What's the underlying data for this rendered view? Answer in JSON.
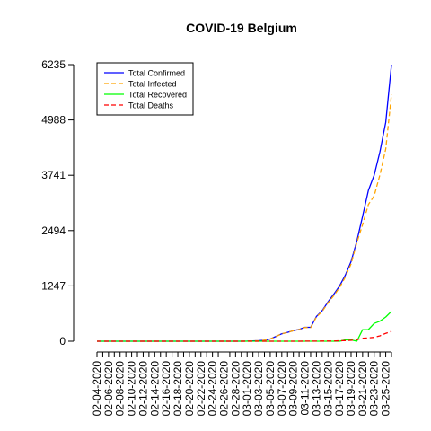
{
  "chart_data": {
    "type": "line",
    "title": "COVID-19 Belgium",
    "xlabel": "",
    "ylabel": "",
    "ylim": [
      0,
      6235
    ],
    "y_ticks": [
      0,
      1247,
      2494,
      3741,
      4988,
      6235
    ],
    "x_tick_labels": [
      "02-04-2020",
      "02-06-2020",
      "02-08-2020",
      "02-10-2020",
      "02-12-2020",
      "02-14-2020",
      "02-16-2020",
      "02-18-2020",
      "02-20-2020",
      "02-22-2020",
      "02-24-2020",
      "02-26-2020",
      "02-28-2020",
      "03-01-2020",
      "03-03-2020",
      "03-05-2020",
      "03-07-2020",
      "03-09-2020",
      "03-11-2020",
      "03-13-2020",
      "03-15-2020",
      "03-17-2020",
      "03-19-2020",
      "03-21-2020",
      "03-23-2020",
      "03-25-2020"
    ],
    "legend_position": "top-left",
    "grid": false,
    "x": [
      "02-04-2020",
      "02-05-2020",
      "02-06-2020",
      "02-07-2020",
      "02-08-2020",
      "02-09-2020",
      "02-10-2020",
      "02-11-2020",
      "02-12-2020",
      "02-13-2020",
      "02-14-2020",
      "02-15-2020",
      "02-16-2020",
      "02-17-2020",
      "02-18-2020",
      "02-19-2020",
      "02-20-2020",
      "02-21-2020",
      "02-22-2020",
      "02-23-2020",
      "02-24-2020",
      "02-25-2020",
      "02-26-2020",
      "02-27-2020",
      "02-28-2020",
      "02-29-2020",
      "03-01-2020",
      "03-02-2020",
      "03-03-2020",
      "03-04-2020",
      "03-05-2020",
      "03-06-2020",
      "03-07-2020",
      "03-08-2020",
      "03-09-2020",
      "03-10-2020",
      "03-11-2020",
      "03-12-2020",
      "03-13-2020",
      "03-14-2020",
      "03-15-2020",
      "03-16-2020",
      "03-17-2020",
      "03-18-2020",
      "03-19-2020",
      "03-20-2020",
      "03-21-2020",
      "03-22-2020",
      "03-23-2020",
      "03-24-2020",
      "03-25-2020",
      "03-26-2020"
    ],
    "series": [
      {
        "name": "Total Confirmed",
        "color": "#0000ff",
        "dash": "none",
        "values": [
          1,
          1,
          1,
          1,
          1,
          1,
          1,
          1,
          1,
          1,
          1,
          1,
          1,
          1,
          1,
          1,
          1,
          1,
          1,
          1,
          1,
          1,
          1,
          1,
          1,
          1,
          2,
          8,
          13,
          23,
          50,
          109,
          169,
          200,
          239,
          267,
          314,
          314,
          559,
          689,
          886,
          1058,
          1243,
          1486,
          1795,
          2257,
          2815,
          3401,
          3743,
          4269,
          4937,
          6235
        ]
      },
      {
        "name": "Total Infected",
        "color": "#ffa500",
        "dash": "5,3",
        "values": [
          1,
          1,
          1,
          1,
          1,
          1,
          1,
          1,
          1,
          1,
          1,
          1,
          1,
          1,
          1,
          1,
          1,
          1,
          1,
          1,
          1,
          1,
          1,
          1,
          1,
          1,
          2,
          8,
          13,
          23,
          50,
          108,
          168,
          199,
          236,
          264,
          310,
          308,
          547,
          671,
          864,
          1027,
          1209,
          1443,
          1742,
          2218,
          2627,
          3084,
          3275,
          3752,
          4335,
          5563
        ]
      },
      {
        "name": "Total Recovered",
        "color": "#00ff00",
        "dash": "none",
        "values": [
          0,
          0,
          0,
          0,
          0,
          0,
          0,
          0,
          0,
          0,
          0,
          0,
          0,
          0,
          0,
          0,
          0,
          0,
          0,
          0,
          0,
          0,
          0,
          0,
          0,
          0,
          0,
          0,
          0,
          0,
          0,
          0,
          0,
          0,
          0,
          0,
          0,
          1,
          1,
          1,
          1,
          1,
          1,
          31,
          31,
          1,
          260,
          263,
          401,
          452,
          547,
          675
        ]
      },
      {
        "name": "Total Deaths",
        "color": "#ff0000",
        "dash": "5,3",
        "values": [
          0,
          0,
          0,
          0,
          0,
          0,
          0,
          0,
          0,
          0,
          0,
          0,
          0,
          0,
          0,
          0,
          0,
          0,
          0,
          0,
          0,
          0,
          0,
          0,
          0,
          0,
          0,
          0,
          0,
          0,
          0,
          0,
          0,
          0,
          0,
          0,
          3,
          3,
          3,
          4,
          4,
          5,
          10,
          14,
          21,
          37,
          67,
          75,
          88,
          122,
          178,
          220
        ]
      }
    ]
  }
}
